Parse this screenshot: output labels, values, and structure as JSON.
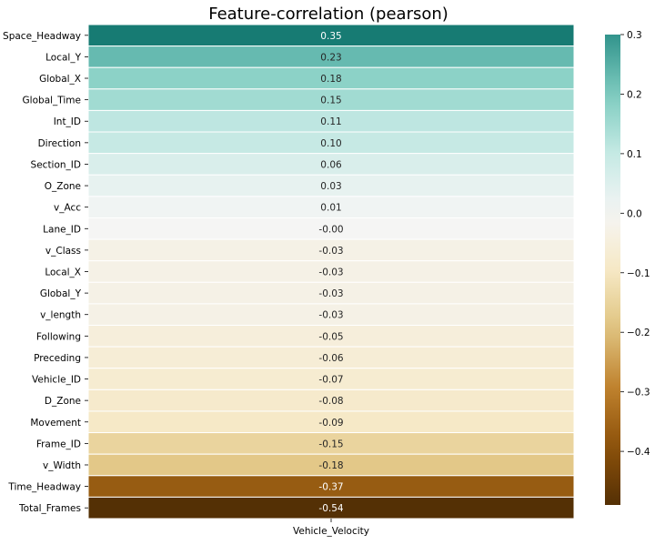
{
  "chart_data": {
    "type": "heatmap",
    "title": "Feature-correlation (pearson)",
    "columns": [
      "Vehicle_Velocity"
    ],
    "rows": [
      "Space_Headway",
      "Local_Y",
      "Global_X",
      "Global_Time",
      "Int_ID",
      "Direction",
      "Section_ID",
      "O_Zone",
      "v_Acc",
      "Lane_ID",
      "v_Class",
      "Local_X",
      "Global_Y",
      "v_length",
      "Following",
      "Preceding",
      "Vehicle_ID",
      "D_Zone",
      "Movement",
      "Frame_ID",
      "v_Width",
      "Time_Headway",
      "Total_Frames"
    ],
    "values": [
      0.35,
      0.23,
      0.18,
      0.15,
      0.11,
      0.1,
      0.06,
      0.03,
      0.01,
      -0.001,
      -0.03,
      -0.03,
      -0.03,
      -0.03,
      -0.05,
      -0.06,
      -0.07,
      -0.08,
      -0.09,
      -0.15,
      -0.18,
      -0.37,
      -0.54
    ],
    "value_labels": [
      "0.35",
      "0.23",
      "0.18",
      "0.15",
      "0.11",
      "0.10",
      "0.06",
      "0.03",
      "0.01",
      "-0.00",
      "-0.03",
      "-0.03",
      "-0.03",
      "-0.03",
      "-0.05",
      "-0.06",
      "-0.07",
      "-0.08",
      "-0.09",
      "-0.15",
      "-0.18",
      "-0.37",
      "-0.54"
    ],
    "colormap": "BrBG",
    "colorbar": {
      "range": [
        -0.49,
        0.3
      ],
      "ticks": [
        0.3,
        0.2,
        0.1,
        0.0,
        -0.1,
        -0.2,
        -0.3,
        -0.4
      ],
      "tick_labels": [
        "0.3",
        "0.2",
        "0.1",
        "0.0",
        "−0.1",
        "−0.2",
        "−0.3",
        "−0.4"
      ]
    },
    "colors": {
      "neg_strong": "#543005",
      "neutral": "#f5f5f5",
      "pos_strong": "#35978f"
    }
  }
}
